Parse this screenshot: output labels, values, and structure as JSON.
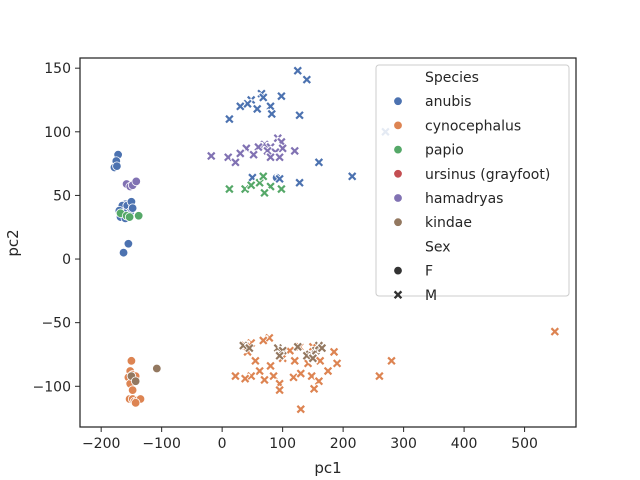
{
  "chart_data": {
    "type": "scatter",
    "title": "",
    "xlabel": "pc1",
    "ylabel": "pc2",
    "xlim": [
      -235,
      585
    ],
    "ylim": [
      -132,
      158
    ],
    "xticks": [
      -200,
      -100,
      0,
      100,
      200,
      300,
      400,
      500
    ],
    "yticks": [
      -100,
      -50,
      0,
      50,
      100,
      150
    ],
    "xtick_labels": [
      "−200",
      "−100",
      "0",
      "100",
      "200",
      "300",
      "400",
      "500"
    ],
    "ytick_labels": [
      "−100",
      "−50",
      "0",
      "50",
      "100",
      "150"
    ],
    "grid": false,
    "legend": {
      "placement": "top-right",
      "hue_title": "Species",
      "style_title": "Sex",
      "species": [
        {
          "name": "anubis",
          "color": "#4c72b0"
        },
        {
          "name": "cynocephalus",
          "color": "#dd8452"
        },
        {
          "name": "papio",
          "color": "#55a868"
        },
        {
          "name": "ursinus (grayfoot)",
          "color": "#c44e52"
        },
        {
          "name": "hamadryas",
          "color": "#8172b3"
        },
        {
          "name": "kindae",
          "color": "#937860"
        }
      ],
      "sexes": [
        {
          "name": "F",
          "marker": "circle"
        },
        {
          "name": "M",
          "marker": "x"
        }
      ]
    },
    "series": [
      {
        "species": "anubis",
        "sex": "F",
        "points": [
          [
            -172,
            82
          ],
          [
            -175,
            77
          ],
          [
            -178,
            72
          ],
          [
            -174,
            73
          ],
          [
            -160,
            43
          ],
          [
            -165,
            42
          ],
          [
            -157,
            42
          ],
          [
            -150,
            45
          ],
          [
            -148,
            40
          ],
          [
            -152,
            37
          ],
          [
            -162,
            36
          ],
          [
            -170,
            38
          ],
          [
            -168,
            33
          ],
          [
            -160,
            32
          ],
          [
            -155,
            12
          ],
          [
            -163,
            5
          ],
          [
            -148,
            40
          ],
          [
            90,
            64
          ]
        ]
      },
      {
        "species": "anubis",
        "sex": "M",
        "points": [
          [
            125,
            148
          ],
          [
            140,
            141
          ],
          [
            65,
            130
          ],
          [
            98,
            128
          ],
          [
            68,
            127
          ],
          [
            80,
            120
          ],
          [
            48,
            125
          ],
          [
            42,
            122
          ],
          [
            30,
            120
          ],
          [
            58,
            118
          ],
          [
            82,
            114
          ],
          [
            128,
            113
          ],
          [
            12,
            110
          ],
          [
            270,
            100
          ],
          [
            160,
            76
          ],
          [
            215,
            65
          ],
          [
            128,
            60
          ],
          [
            50,
            64
          ],
          [
            95,
            63
          ]
        ]
      },
      {
        "species": "cynocephalus",
        "sex": "F",
        "points": [
          [
            -150,
            -80
          ],
          [
            -152,
            -88
          ],
          [
            -148,
            -91
          ],
          [
            -155,
            -93
          ],
          [
            -143,
            -92
          ],
          [
            -152,
            -98
          ],
          [
            -148,
            -103
          ],
          [
            -153,
            -110
          ],
          [
            -148,
            -110
          ],
          [
            -145,
            -112
          ],
          [
            -140,
            -111
          ],
          [
            -135,
            -110
          ],
          [
            -143,
            -113
          ]
        ]
      },
      {
        "species": "cynocephalus",
        "sex": "M",
        "points": [
          [
            550,
            -57
          ],
          [
            78,
            -62
          ],
          [
            68,
            -64
          ],
          [
            48,
            -66
          ],
          [
            38,
            -68
          ],
          [
            42,
            -73
          ],
          [
            55,
            -80
          ],
          [
            100,
            -73
          ],
          [
            112,
            -72
          ],
          [
            128,
            -69
          ],
          [
            150,
            -69
          ],
          [
            185,
            -73
          ],
          [
            190,
            -82
          ],
          [
            175,
            -88
          ],
          [
            162,
            -80
          ],
          [
            142,
            -82
          ],
          [
            120,
            -80
          ],
          [
            100,
            -78
          ],
          [
            80,
            -84
          ],
          [
            62,
            -88
          ],
          [
            48,
            -92
          ],
          [
            38,
            -94
          ],
          [
            22,
            -92
          ],
          [
            70,
            -95
          ],
          [
            85,
            -92
          ],
          [
            95,
            -98
          ],
          [
            118,
            -93
          ],
          [
            130,
            -90
          ],
          [
            148,
            -92
          ],
          [
            160,
            -96
          ],
          [
            152,
            -102
          ],
          [
            95,
            -103
          ],
          [
            280,
            -80
          ],
          [
            260,
            -92
          ],
          [
            130,
            -118
          ]
        ]
      },
      {
        "species": "papio",
        "sex": "F",
        "points": [
          [
            -168,
            36
          ],
          [
            -158,
            34
          ],
          [
            -153,
            33
          ],
          [
            -138,
            34
          ]
        ]
      },
      {
        "species": "papio",
        "sex": "M",
        "points": [
          [
            12,
            55
          ],
          [
            38,
            55
          ],
          [
            48,
            58
          ],
          [
            62,
            60
          ],
          [
            68,
            65
          ],
          [
            80,
            57
          ],
          [
            98,
            55
          ],
          [
            70,
            52
          ]
        ]
      },
      {
        "species": "hamadryas",
        "sex": "F",
        "points": [
          [
            -158,
            59
          ],
          [
            -152,
            57
          ],
          [
            -148,
            58
          ],
          [
            -142,
            61
          ]
        ]
      },
      {
        "species": "hamadryas",
        "sex": "M",
        "points": [
          [
            92,
            95
          ],
          [
            98,
            92
          ],
          [
            70,
            90
          ],
          [
            80,
            88
          ],
          [
            100,
            87
          ],
          [
            88,
            84
          ],
          [
            75,
            85
          ],
          [
            60,
            88
          ],
          [
            40,
            87
          ],
          [
            30,
            83
          ],
          [
            52,
            82
          ],
          [
            80,
            80
          ],
          [
            95,
            80
          ],
          [
            -18,
            81
          ],
          [
            10,
            80
          ],
          [
            22,
            76
          ],
          [
            120,
            85
          ]
        ]
      },
      {
        "species": "kindae",
        "sex": "F",
        "points": [
          [
            -108,
            -86
          ],
          [
            -150,
            -92
          ],
          [
            -143,
            -96
          ]
        ]
      },
      {
        "species": "kindae",
        "sex": "M",
        "points": [
          [
            35,
            -68
          ],
          [
            45,
            -70
          ],
          [
            92,
            -70
          ],
          [
            100,
            -72
          ],
          [
            125,
            -69
          ],
          [
            145,
            -75
          ],
          [
            155,
            -72
          ],
          [
            160,
            -68
          ],
          [
            165,
            -70
          ],
          [
            140,
            -76
          ],
          [
            150,
            -78
          ],
          [
            95,
            -76
          ]
        ]
      }
    ]
  }
}
